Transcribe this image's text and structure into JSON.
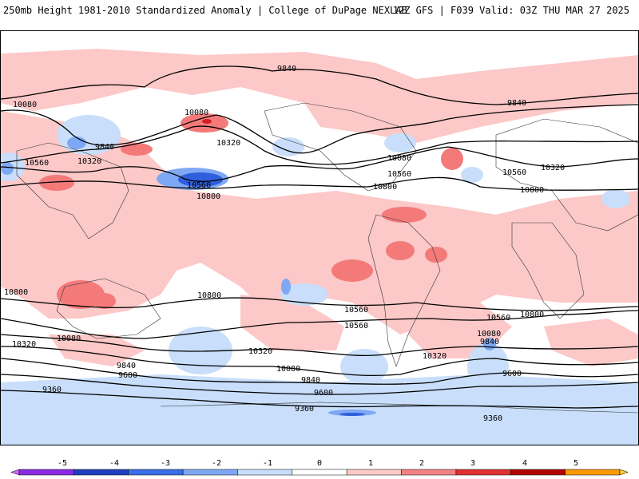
{
  "header": {
    "title": "250mb Height 1981-2010 Standardized Anomaly | College of DuPage NEXLAB",
    "run_info": "12Z GFS | F039 Valid: 03Z THU MAR 27 2025"
  },
  "contour_labels": [
    "9840",
    "10080",
    "9840",
    "10320",
    "10560",
    "10080",
    "10560",
    "10800",
    "10320",
    "10080",
    "10560",
    "10800",
    "10560",
    "9840",
    "10320",
    "10800",
    "10800",
    "10800",
    "10560",
    "10560",
    "10320",
    "10080",
    "9840",
    "9600",
    "9360",
    "10320",
    "10080",
    "9840",
    "9600",
    "9360",
    "10800",
    "10560",
    "10080",
    "9840",
    "10320",
    "9600",
    "9360",
    "10800"
  ],
  "colorbar": {
    "tick_labels": [
      "-5",
      "-4",
      "-3",
      "-2",
      "-1",
      "0",
      "1",
      "2",
      "3",
      "4",
      "5"
    ],
    "colors": [
      "#cc66ff",
      "#8a2be2",
      "#1f3fbf",
      "#3a6ee8",
      "#7fa8f4",
      "#c8defa",
      "#ffffff",
      "#fcc8c8",
      "#f28282",
      "#e03030",
      "#b00000",
      "#ff9900",
      "#ffcc33"
    ]
  },
  "shading_colors": {
    "pos1": "#fcc8c8",
    "pos2": "#f47a7a",
    "pos3": "#d42020",
    "neg1": "#c8defa",
    "neg2": "#7fa8f4",
    "neg3": "#2f5fdc"
  }
}
